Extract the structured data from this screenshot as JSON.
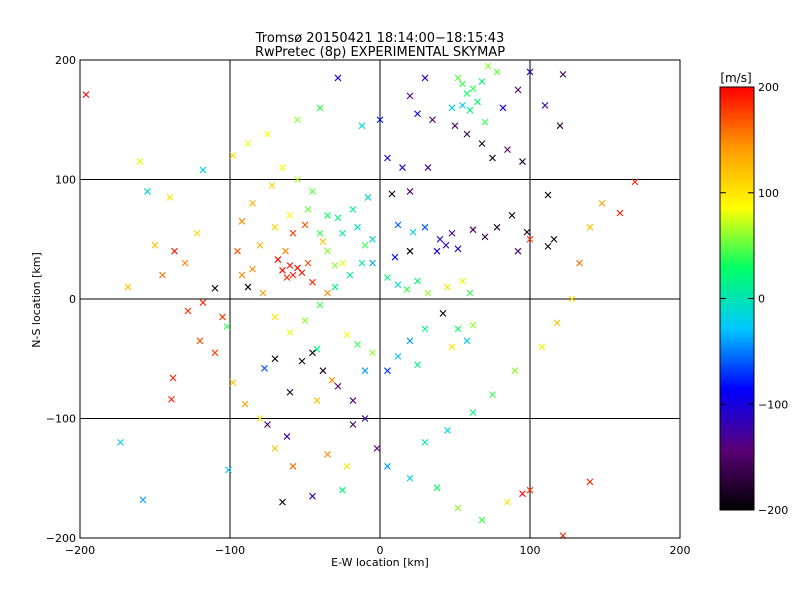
{
  "chart_data": {
    "type": "scatter",
    "title": "Tromsø 20150421 18:14:00−18:15:43",
    "subtitle": "RwPretec (8p) EXPERIMENTAL SKYMAP",
    "xlabel": "E-W location [km]",
    "ylabel": "N-S location [km]",
    "xlim": [
      -200,
      200
    ],
    "ylim": [
      -200,
      200
    ],
    "xticks": [
      -200,
      -100,
      0,
      100,
      200
    ],
    "yticks": [
      -200,
      -100,
      0,
      100,
      200
    ],
    "xtick_labels": [
      "−200",
      "−100",
      "0",
      "100",
      "200"
    ],
    "ytick_labels": [
      "−200",
      "−100",
      "0",
      "100",
      "200"
    ],
    "grid": true,
    "marker_styles": [
      "x",
      "dot"
    ],
    "colorbar": {
      "label": "[m/s]",
      "range": [
        -200,
        200
      ],
      "ticks": [
        200,
        100,
        0,
        -100,
        -200
      ],
      "tick_labels": [
        "200",
        "100",
        "0",
        "−100",
        "−200"
      ],
      "colormap": [
        "#000000",
        "#5a0078",
        "#0000ff",
        "#00c8ff",
        "#00ff66",
        "#ffff00",
        "#ff9900",
        "#ff0000"
      ]
    },
    "points": [
      [
        -196,
        171,
        200,
        "x"
      ],
      [
        -168,
        10,
        120,
        "x"
      ],
      [
        -158,
        -168,
        -40,
        "x"
      ],
      [
        -139,
        -84,
        190,
        "x"
      ],
      [
        -137,
        40,
        190,
        "x"
      ],
      [
        -122,
        55,
        110,
        "x"
      ],
      [
        -118,
        108,
        -20,
        "x"
      ],
      [
        -101,
        -143,
        -30,
        "x"
      ],
      [
        -98,
        120,
        110,
        "x"
      ],
      [
        -88,
        130,
        80,
        "x"
      ],
      [
        -118,
        -3,
        190,
        "x"
      ],
      [
        -102,
        -23,
        40,
        "x"
      ],
      [
        -77,
        -58,
        -60,
        "x"
      ],
      [
        -75,
        138,
        90,
        "x"
      ],
      [
        -65,
        24,
        195,
        "x"
      ],
      [
        -60,
        28,
        195,
        "x"
      ],
      [
        -58,
        20,
        190,
        "x"
      ],
      [
        -55,
        26,
        195,
        "x"
      ],
      [
        -62,
        18,
        185,
        "x"
      ],
      [
        -52,
        22,
        195,
        "x"
      ],
      [
        -68,
        33,
        200,
        "x"
      ],
      [
        -48,
        30,
        170,
        "x"
      ],
      [
        -45,
        14,
        190,
        "x"
      ],
      [
        -63,
        40,
        150,
        "x"
      ],
      [
        -58,
        55,
        180,
        "x"
      ],
      [
        -50,
        62,
        170,
        "x"
      ],
      [
        -38,
        48,
        120,
        "x"
      ],
      [
        -30,
        28,
        60,
        "x"
      ],
      [
        -35,
        5,
        150,
        "x"
      ],
      [
        -42,
        -42,
        20,
        "x"
      ],
      [
        -52,
        -52,
        -190,
        "x"
      ],
      [
        -45,
        -45,
        -200,
        "x"
      ],
      [
        -38,
        -60,
        -180,
        "x"
      ],
      [
        -32,
        -68,
        150,
        "x"
      ],
      [
        -70,
        -50,
        -200,
        "x"
      ],
      [
        -60,
        -78,
        -180,
        "x"
      ],
      [
        -42,
        -85,
        120,
        "x"
      ],
      [
        -28,
        -73,
        -150,
        "x"
      ],
      [
        -18,
        -85,
        -140,
        "x"
      ],
      [
        -10,
        -100,
        -120,
        "x"
      ],
      [
        -25,
        -160,
        20,
        "x"
      ],
      [
        -45,
        -165,
        -120,
        "x"
      ],
      [
        -65,
        -170,
        -200,
        "x"
      ],
      [
        -55,
        150,
        60,
        "x"
      ],
      [
        -40,
        160,
        40,
        "x"
      ],
      [
        -28,
        185,
        -100,
        "x"
      ],
      [
        -12,
        145,
        -20,
        "x"
      ],
      [
        0,
        150,
        -80,
        "x"
      ],
      [
        5,
        118,
        -100,
        "x"
      ],
      [
        15,
        110,
        -110,
        "x"
      ],
      [
        32,
        110,
        -120,
        "x"
      ],
      [
        20,
        90,
        -150,
        "x"
      ],
      [
        8,
        88,
        -190,
        "x"
      ],
      [
        12,
        62,
        -60,
        "x"
      ],
      [
        22,
        56,
        -20,
        "x"
      ],
      [
        30,
        60,
        -60,
        "x"
      ],
      [
        40,
        50,
        -110,
        "x"
      ],
      [
        44,
        45,
        -120,
        "x"
      ],
      [
        48,
        55,
        -130,
        "x"
      ],
      [
        38,
        40,
        -100,
        "x"
      ],
      [
        52,
        42,
        -110,
        "x"
      ],
      [
        62,
        58,
        -160,
        "x"
      ],
      [
        70,
        52,
        -170,
        "x"
      ],
      [
        78,
        60,
        -180,
        "x"
      ],
      [
        88,
        70,
        -200,
        "x"
      ],
      [
        98,
        56,
        -180,
        "x"
      ],
      [
        112,
        87,
        -200,
        "x"
      ],
      [
        116,
        50,
        -200,
        "x"
      ],
      [
        112,
        44,
        -190,
        "x"
      ],
      [
        100,
        50,
        180,
        "x"
      ],
      [
        92,
        40,
        -150,
        "x"
      ],
      [
        20,
        40,
        -200,
        "x"
      ],
      [
        10,
        35,
        -80,
        "x"
      ],
      [
        -10,
        45,
        40,
        "x"
      ],
      [
        -5,
        30,
        -40,
        "x"
      ],
      [
        5,
        18,
        20,
        "x"
      ],
      [
        12,
        12,
        -10,
        "x"
      ],
      [
        18,
        8,
        40,
        "x"
      ],
      [
        25,
        15,
        20,
        "x"
      ],
      [
        32,
        5,
        60,
        "x"
      ],
      [
        45,
        10,
        100,
        "x"
      ],
      [
        55,
        15,
        80,
        "x"
      ],
      [
        60,
        5,
        40,
        "x"
      ],
      [
        42,
        -12,
        -200,
        "x"
      ],
      [
        52,
        -25,
        30,
        "x"
      ],
      [
        58,
        -35,
        -20,
        "x"
      ],
      [
        48,
        -40,
        100,
        "x"
      ],
      [
        62,
        -22,
        60,
        "x"
      ],
      [
        30,
        -25,
        20,
        "x"
      ],
      [
        20,
        -35,
        -40,
        "x"
      ],
      [
        12,
        -48,
        -30,
        "x"
      ],
      [
        25,
        -55,
        20,
        "x"
      ],
      [
        5,
        -60,
        -70,
        "x"
      ],
      [
        -5,
        -45,
        60,
        "x"
      ],
      [
        -15,
        -38,
        40,
        "x"
      ],
      [
        -22,
        -30,
        90,
        "x"
      ],
      [
        -10,
        -60,
        -40,
        "x"
      ],
      [
        -2,
        -125,
        -140,
        "x"
      ],
      [
        -18,
        -105,
        -160,
        "x"
      ],
      [
        -75,
        -105,
        -160,
        "x"
      ],
      [
        -62,
        -115,
        -120,
        "x"
      ],
      [
        -88,
        10,
        -200,
        "x"
      ],
      [
        -110,
        9,
        -200,
        "x"
      ],
      [
        -105,
        -15,
        180,
        "x"
      ],
      [
        -138,
        -66,
        190,
        "x"
      ],
      [
        -173,
        -120,
        -20,
        "x"
      ],
      [
        35,
        150,
        -150,
        "x"
      ],
      [
        50,
        145,
        -160,
        "x"
      ],
      [
        58,
        138,
        -170,
        "x"
      ],
      [
        68,
        130,
        -180,
        "x"
      ],
      [
        75,
        118,
        -200,
        "x"
      ],
      [
        85,
        125,
        -150,
        "x"
      ],
      [
        95,
        115,
        -180,
        "x"
      ],
      [
        55,
        180,
        40,
        "x"
      ],
      [
        58,
        172,
        30,
        "x"
      ],
      [
        52,
        185,
        50,
        "x"
      ],
      [
        62,
        176,
        40,
        "x"
      ],
      [
        68,
        182,
        20,
        "x"
      ],
      [
        72,
        195,
        60,
        "x"
      ],
      [
        78,
        190,
        50,
        "x"
      ],
      [
        65,
        165,
        30,
        "x"
      ],
      [
        60,
        158,
        20,
        "x"
      ],
      [
        55,
        162,
        -30,
        "x"
      ],
      [
        48,
        160,
        -20,
        "x"
      ],
      [
        70,
        148,
        40,
        "x"
      ],
      [
        82,
        160,
        -110,
        "x"
      ],
      [
        92,
        175,
        -150,
        "x"
      ],
      [
        100,
        190,
        -120,
        "x"
      ],
      [
        110,
        162,
        -120,
        "x"
      ],
      [
        120,
        145,
        -180,
        "x"
      ],
      [
        122,
        188,
        -160,
        "x"
      ],
      [
        30,
        185,
        -120,
        "x"
      ],
      [
        20,
        170,
        -140,
        "x"
      ],
      [
        25,
        155,
        -100,
        "x"
      ],
      [
        -140,
        85,
        100,
        "x"
      ],
      [
        -155,
        90,
        -20,
        "x"
      ],
      [
        -160,
        115,
        80,
        "x"
      ],
      [
        -150,
        45,
        120,
        "x"
      ],
      [
        -145,
        20,
        160,
        "x"
      ],
      [
        -130,
        30,
        150,
        "x"
      ],
      [
        -128,
        -10,
        180,
        "x"
      ],
      [
        -120,
        -35,
        170,
        "x"
      ],
      [
        -110,
        -45,
        180,
        "x"
      ],
      [
        -98,
        -70,
        120,
        "x"
      ],
      [
        -90,
        -88,
        140,
        "x"
      ],
      [
        -80,
        -100,
        100,
        "x"
      ],
      [
        -70,
        -125,
        120,
        "x"
      ],
      [
        -58,
        -140,
        160,
        "x"
      ],
      [
        -35,
        -130,
        150,
        "x"
      ],
      [
        -22,
        -140,
        100,
        "x"
      ],
      [
        5,
        -140,
        -40,
        "x"
      ],
      [
        20,
        -150,
        -20,
        "x"
      ],
      [
        38,
        -158,
        30,
        "x"
      ],
      [
        52,
        -175,
        60,
        "x"
      ],
      [
        68,
        -185,
        40,
        "x"
      ],
      [
        85,
        -170,
        100,
        "x"
      ],
      [
        100,
        -160,
        180,
        "x"
      ],
      [
        122,
        -198,
        190,
        "x"
      ],
      [
        140,
        -153,
        190,
        "x"
      ],
      [
        95,
        -163,
        200,
        "x"
      ],
      [
        160,
        72,
        190,
        "x"
      ],
      [
        170,
        98,
        190,
        "x"
      ],
      [
        133,
        30,
        160,
        "x"
      ],
      [
        140,
        60,
        120,
        "x"
      ],
      [
        148,
        80,
        140,
        "x"
      ],
      [
        128,
        0,
        100,
        "x"
      ],
      [
        118,
        -20,
        120,
        "x"
      ],
      [
        108,
        -40,
        80,
        "x"
      ],
      [
        90,
        -60,
        60,
        "x"
      ],
      [
        75,
        -80,
        40,
        "x"
      ],
      [
        62,
        -95,
        20,
        "x"
      ],
      [
        45,
        -110,
        -20,
        "x"
      ],
      [
        30,
        -120,
        0,
        "x"
      ],
      [
        -25,
        30,
        80,
        "x"
      ],
      [
        -35,
        40,
        60,
        "x"
      ],
      [
        -40,
        55,
        40,
        "x"
      ],
      [
        -28,
        68,
        20,
        "x"
      ],
      [
        -18,
        75,
        10,
        "x"
      ],
      [
        -8,
        85,
        -10,
        "x"
      ],
      [
        -48,
        75,
        50,
        "x"
      ],
      [
        -60,
        70,
        90,
        "x"
      ],
      [
        -70,
        60,
        110,
        "x"
      ],
      [
        -80,
        45,
        130,
        "x"
      ],
      [
        -85,
        25,
        150,
        "x"
      ],
      [
        -78,
        5,
        140,
        "x"
      ],
      [
        -70,
        -15,
        100,
        "x"
      ],
      [
        -60,
        -28,
        80,
        "x"
      ],
      [
        -50,
        -18,
        60,
        "x"
      ],
      [
        -40,
        -5,
        40,
        "x"
      ],
      [
        -30,
        10,
        20,
        "x"
      ],
      [
        -20,
        20,
        10,
        "x"
      ],
      [
        -12,
        30,
        0,
        "x"
      ],
      [
        -5,
        50,
        -20,
        "x"
      ],
      [
        -15,
        60,
        -10,
        "x"
      ],
      [
        -25,
        55,
        10,
        "x"
      ],
      [
        -35,
        70,
        30,
        "x"
      ],
      [
        -45,
        90,
        50,
        "x"
      ],
      [
        -55,
        100,
        70,
        "x"
      ],
      [
        -65,
        110,
        90,
        "x"
      ],
      [
        -72,
        95,
        110,
        "x"
      ],
      [
        -85,
        80,
        130,
        "x"
      ],
      [
        -92,
        65,
        150,
        "x"
      ],
      [
        -95,
        40,
        170,
        "x"
      ],
      [
        -92,
        20,
        150,
        "x"
      ]
    ]
  }
}
